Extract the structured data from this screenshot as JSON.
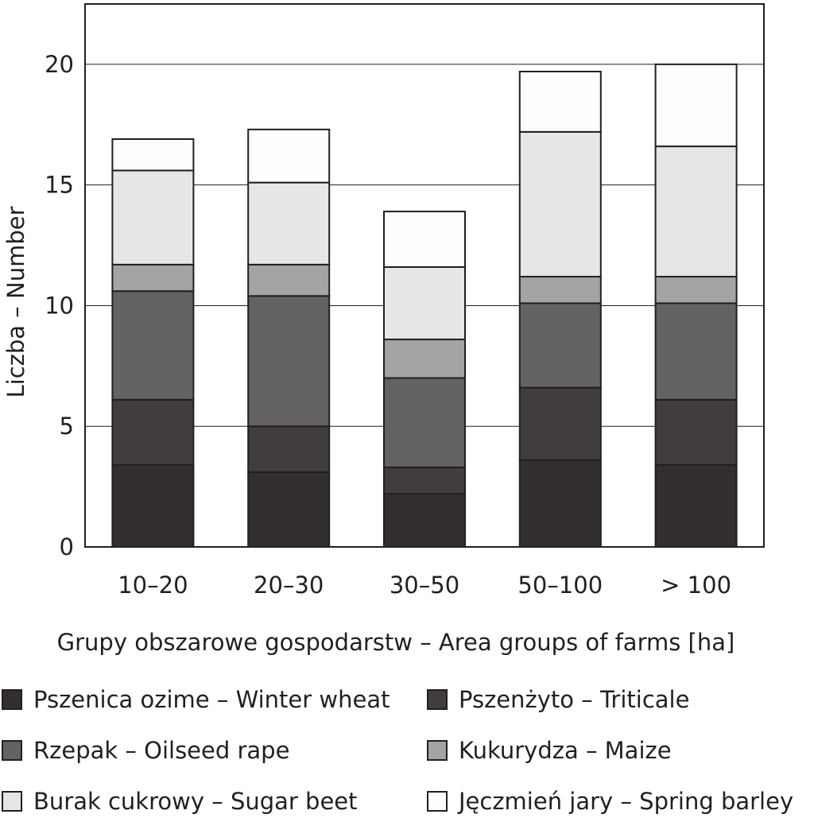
{
  "chart_data": {
    "type": "bar",
    "stacked": true,
    "xlabel": "Grupy obszarowe gospodarstw – Area groups of farms [ha]",
    "ylabel": "Liczba – Number",
    "categories": [
      "10–20",
      "20–30",
      "30–50",
      "50–100",
      "> 100"
    ],
    "ylim": [
      0,
      22.5
    ],
    "yticks": [
      0,
      5,
      10,
      15,
      20
    ],
    "grid": true,
    "legend_position": "bottom",
    "series": [
      {
        "name": "Pszenica ozime – Winter wheat",
        "color": "#332e2f",
        "values": [
          3.4,
          3.1,
          2.2,
          3.6,
          3.4
        ]
      },
      {
        "name": "Pszenżyto – Triticale",
        "color": "#413d3e",
        "values": [
          2.7,
          1.9,
          1.1,
          3.0,
          2.7
        ]
      },
      {
        "name": "Rzepak – Oilseed rape",
        "color": "#646263",
        "values": [
          4.5,
          5.4,
          3.7,
          3.5,
          4.0
        ]
      },
      {
        "name": "Kukurydza – Maize",
        "color": "#a5a3a4",
        "values": [
          1.1,
          1.3,
          1.6,
          1.1,
          1.1
        ]
      },
      {
        "name": "Burak cukrowy – Sugar beet",
        "color": "#e6e6e6",
        "values": [
          3.9,
          3.4,
          3.0,
          6.0,
          5.4
        ]
      },
      {
        "name": "Jęczmień jary – Spring barley",
        "color": "#fdfdfd",
        "values": [
          1.3,
          2.2,
          2.3,
          2.5,
          3.4
        ]
      }
    ]
  },
  "legend": {
    "items": [
      {
        "label": "Pszenica ozime – Winter wheat",
        "color": "#332e2f"
      },
      {
        "label": "Pszenżyto – Triticale",
        "color": "#413d3e"
      },
      {
        "label": "Rzepak – Oilseed rape",
        "color": "#646263"
      },
      {
        "label": "Kukurydza – Maize",
        "color": "#a5a3a4"
      },
      {
        "label": "Burak cukrowy – Sugar beet",
        "color": "#e6e6e6"
      },
      {
        "label": "Jęczmień jary – Spring barley",
        "color": "#fdfdfd"
      }
    ]
  }
}
